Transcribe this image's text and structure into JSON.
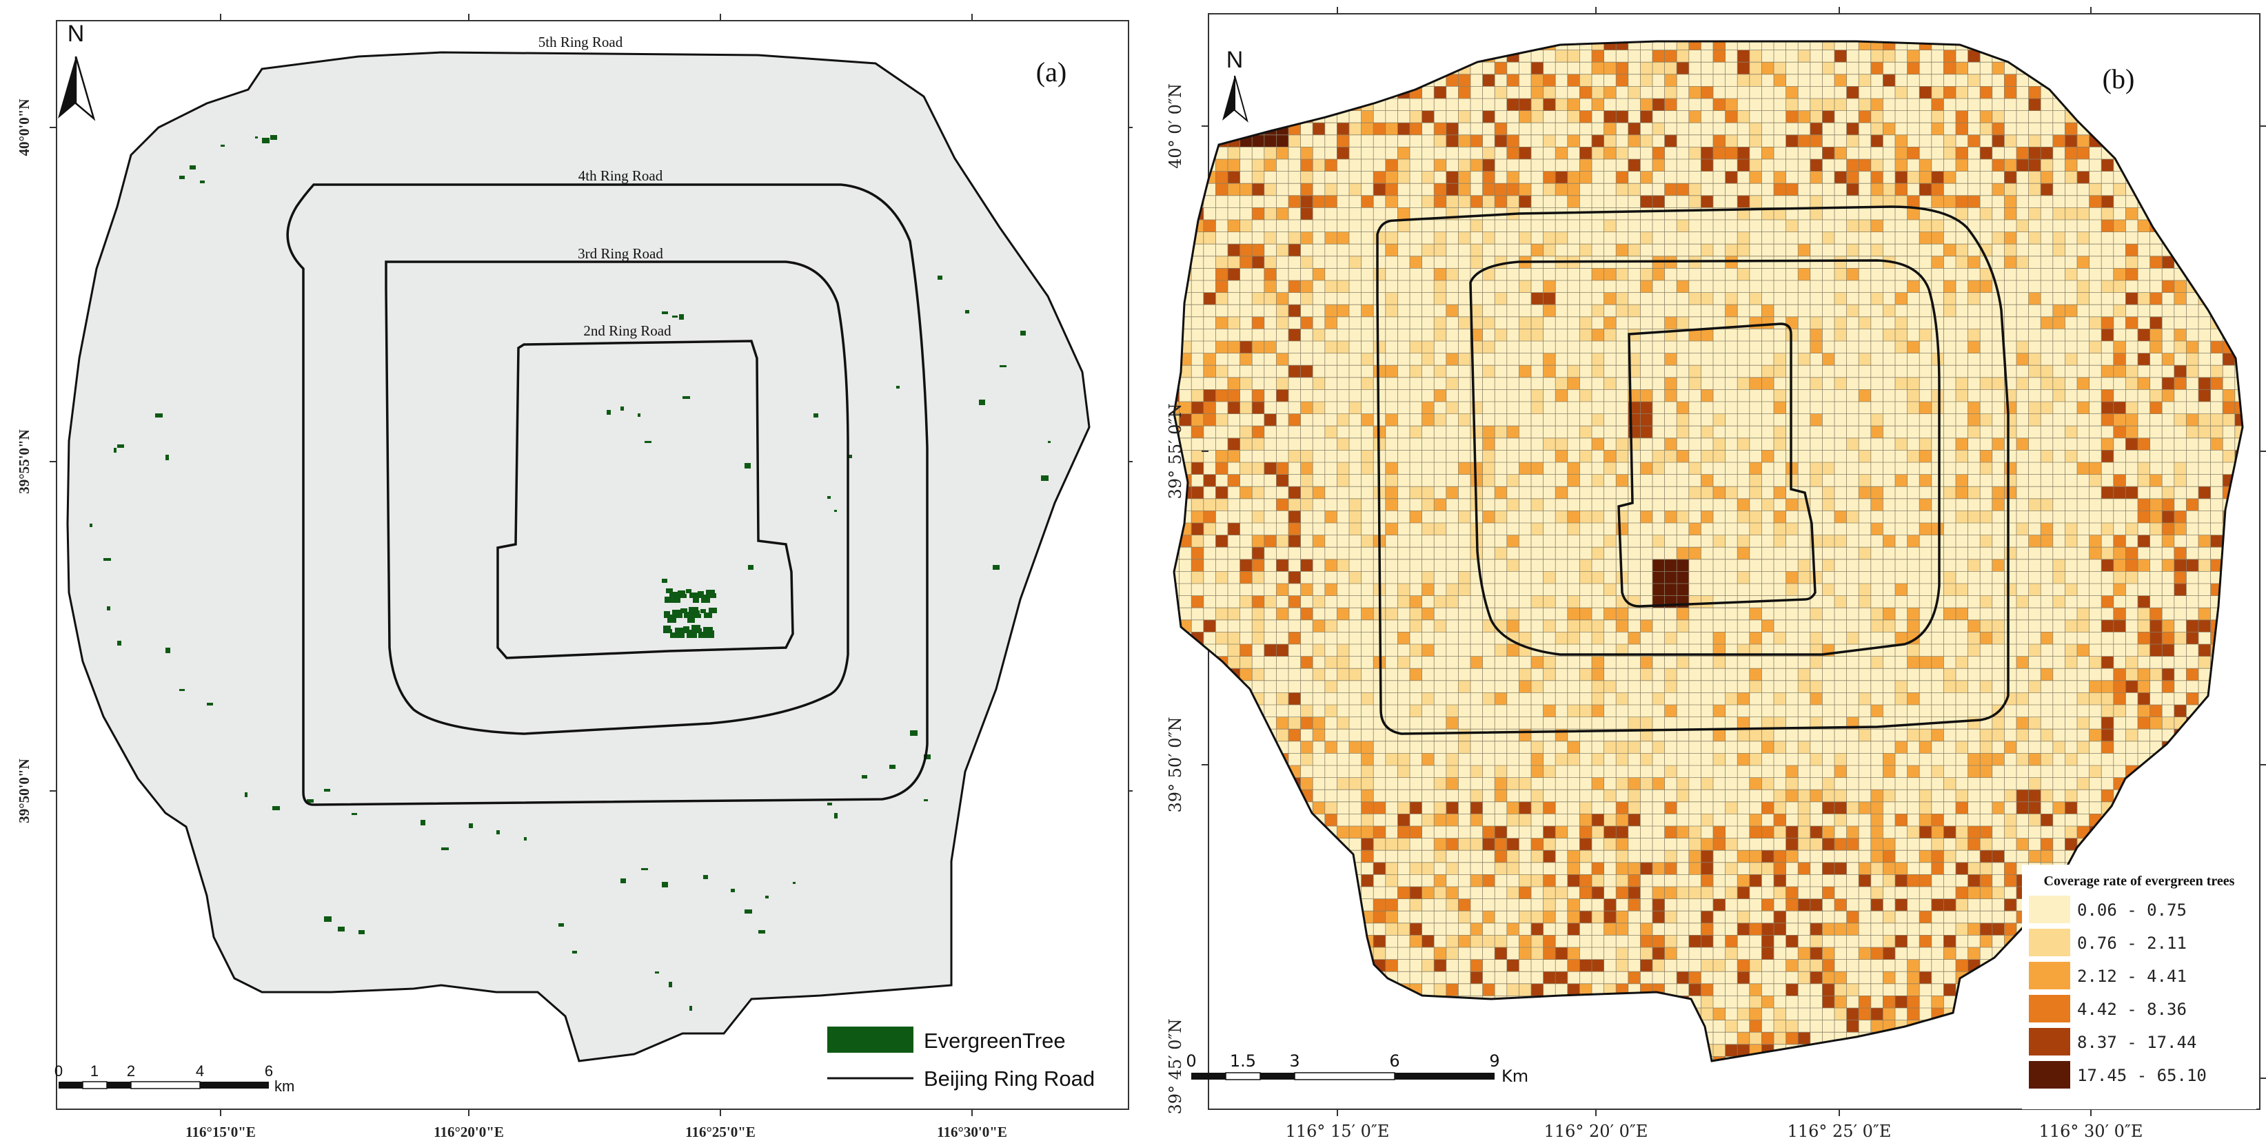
{
  "panel_a": {
    "panel_label": "(a)",
    "north_label": "N",
    "ring_labels": {
      "ring5": "5th Ring Road",
      "ring4": "4th Ring Road",
      "ring3": "3rd Ring Road",
      "ring2": "2nd Ring Road"
    },
    "lat_ticks": [
      "40°0'0\"N",
      "39°55'0\"N",
      "39°50'0\"N"
    ],
    "lon_ticks": [
      "116°15'0\"E",
      "116°20'0\"E",
      "116°25'0\"E",
      "116°30'0\"E"
    ],
    "scale": {
      "ticks": [
        "0",
        "1",
        "2",
        "4",
        "6"
      ],
      "unit": "km"
    },
    "legend": [
      {
        "label": "EvergreenTree",
        "color": "#0e5a14",
        "symbol": "patch"
      },
      {
        "label": "Beijing Ring Road",
        "color": "#111111",
        "symbol": "line"
      }
    ]
  },
  "panel_b": {
    "panel_label": "(b)",
    "north_label": "N",
    "lat_ticks": [
      "40° 0′ 0″N",
      "39° 55′ 0″N",
      "39° 50′ 0″N",
      "39° 45′ 0″N"
    ],
    "lon_ticks": [
      "116° 15′ 0″E",
      "116° 20′ 0″E",
      "116° 25′ 0″E",
      "116° 30′ 0″E"
    ],
    "scale": {
      "ticks": [
        "0",
        "1.5",
        "3",
        "6",
        "9"
      ],
      "unit": "Km"
    },
    "legend": {
      "title": "Coverage rate of evergreen trees",
      "classes": [
        {
          "label": "0.06 - 0.75",
          "color": "#fdf1c4"
        },
        {
          "label": "0.76 - 2.11",
          "color": "#fbd98e"
        },
        {
          "label": "2.12 - 4.41",
          "color": "#f6a53c"
        },
        {
          "label": "4.42 - 8.36",
          "color": "#e67a1c"
        },
        {
          "label": "8.37 - 17.44",
          "color": "#a8400b"
        },
        {
          "label": "17.45 - 65.10",
          "color": "#5c1a05"
        }
      ]
    }
  }
}
